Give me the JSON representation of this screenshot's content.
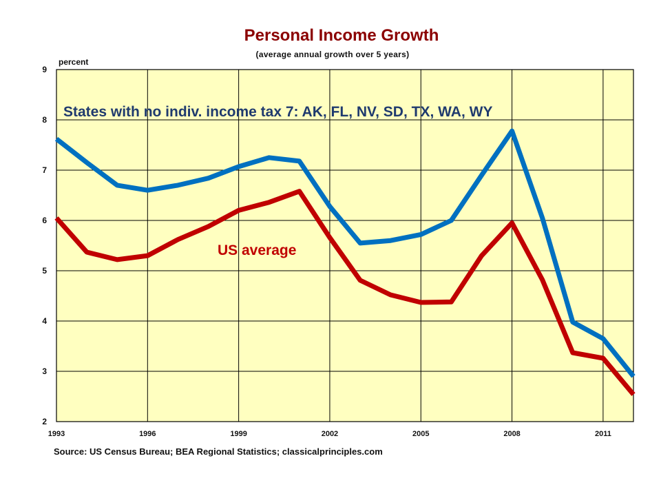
{
  "chart_data": {
    "type": "line",
    "title": "Personal Income Growth",
    "subtitle": "(average annual growth over 5 years)",
    "ylabel": "percent",
    "ylim": [
      2,
      9
    ],
    "yticks": [
      "2",
      "3",
      "4",
      "5",
      "6",
      "7",
      "8",
      "9"
    ],
    "xlim": [
      1993,
      2012
    ],
    "xticks": [
      "1993",
      "1996",
      "1999",
      "2002",
      "2005",
      "2008",
      "2011"
    ],
    "x": [
      1993,
      1994,
      1995,
      1996,
      1997,
      1998,
      1999,
      2000,
      2001,
      2002,
      2003,
      2004,
      2005,
      2006,
      2007,
      2008,
      2009,
      2010,
      2011,
      2012
    ],
    "series": [
      {
        "name": "States with no indiv. income tax 7: AK, FL,  NV, SD, TX, WA, WY",
        "color": "#0070c0",
        "values": [
          7.62,
          7.15,
          6.7,
          6.6,
          6.7,
          6.84,
          7.07,
          7.25,
          7.18,
          6.28,
          5.55,
          5.6,
          5.72,
          6.0,
          6.9,
          7.78,
          6.05,
          3.98,
          3.65,
          2.9
        ]
      },
      {
        "name": "US average",
        "color": "#c00000",
        "values": [
          6.05,
          5.37,
          5.22,
          5.3,
          5.62,
          5.88,
          6.2,
          6.36,
          6.58,
          5.66,
          4.81,
          4.52,
          4.37,
          4.38,
          5.3,
          5.95,
          4.82,
          3.37,
          3.26,
          2.54
        ]
      }
    ],
    "grid": true,
    "background": "#ffffc0",
    "source": "Source: US Census Bureau; BEA Regional Statistics; classicalprinciples.com"
  }
}
